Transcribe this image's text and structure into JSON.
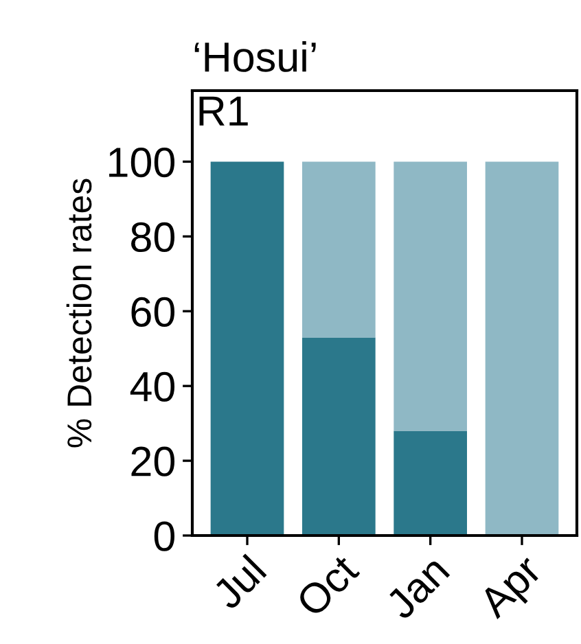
{
  "chart_data": {
    "type": "bar",
    "title": "‘Hosui’",
    "ylabel": "% Detection rates",
    "annotations": [
      "R1"
    ],
    "categories": [
      "Jul",
      "Oct",
      "Jan",
      "Apr"
    ],
    "stacked": true,
    "series": [
      {
        "color": "#2b788b",
        "values": [
          100,
          53,
          28,
          0
        ]
      },
      {
        "color": "#8fb8c5",
        "values": [
          0,
          47,
          72,
          100
        ]
      }
    ],
    "ylim": [
      0,
      119
    ],
    "yticks": [
      0,
      20,
      40,
      60,
      80,
      100
    ],
    "grid": false,
    "legend": false
  }
}
